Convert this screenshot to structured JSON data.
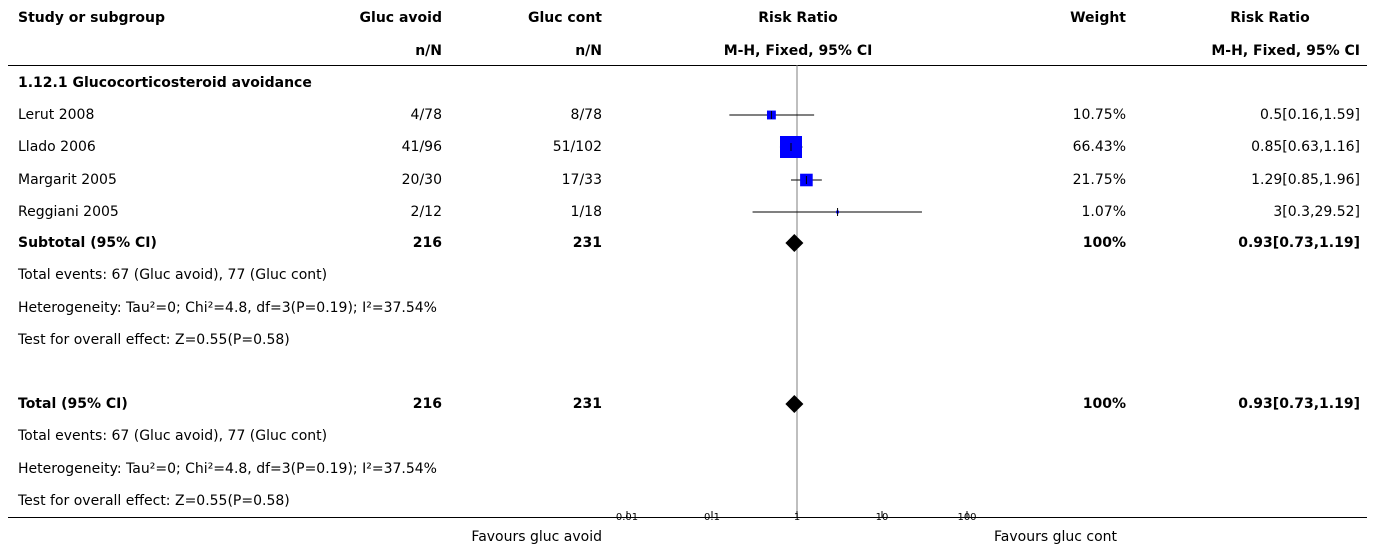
{
  "chart_data": {
    "type": "forest",
    "scale": "log",
    "xlim": [
      0.01,
      100
    ],
    "null_value": 1,
    "headers": {
      "study": "Study or subgroup",
      "group1": "Gluc avoid",
      "group2": "Gluc cont",
      "group1_sub": "n/N",
      "group2_sub": "n/N",
      "plot": "Risk Ratio",
      "plot_sub": "M-H, Fixed, 95% CI",
      "weight": "Weight",
      "effect": "Risk Ratio",
      "effect_sub": "M-H, Fixed, 95% CI"
    },
    "subgroup_title": "1.12.1 Glucocorticosteroid avoidance",
    "studies": [
      {
        "name": "Lerut 2008",
        "g1": "4/78",
        "g2": "8/78",
        "weight": "10.75%",
        "ci_text": "0.5[0.16,1.59]",
        "est": 0.5,
        "lo": 0.16,
        "hi": 1.59,
        "w": 10.75
      },
      {
        "name": "Llado 2006",
        "g1": "41/96",
        "g2": "51/102",
        "weight": "66.43%",
        "ci_text": "0.85[0.63,1.16]",
        "est": 0.85,
        "lo": 0.63,
        "hi": 1.16,
        "w": 66.43
      },
      {
        "name": "Margarit 2005",
        "g1": "20/30",
        "g2": "17/33",
        "weight": "21.75%",
        "ci_text": "1.29[0.85,1.96]",
        "est": 1.29,
        "lo": 0.85,
        "hi": 1.96,
        "w": 21.75
      },
      {
        "name": "Reggiani 2005",
        "g1": "2/12",
        "g2": "1/18",
        "weight": "1.07%",
        "ci_text": "3[0.3,29.52]",
        "est": 3,
        "lo": 0.3,
        "hi": 29.52,
        "w": 1.07
      }
    ],
    "subtotal": {
      "label": "Subtotal (95% CI)",
      "g1": "216",
      "g2": "231",
      "weight": "100%",
      "ci_text": "0.93[0.73,1.19]",
      "est": 0.93,
      "lo": 0.73,
      "hi": 1.19
    },
    "subtotal_notes": [
      "Total events: 67 (Gluc avoid), 77 (Gluc cont)",
      "Heterogeneity: Tau²=0; Chi²=4.8, df=3(P=0.19); I²=37.54%",
      "Test for overall effect: Z=0.55(P=0.58)"
    ],
    "total": {
      "label": "Total (95% CI)",
      "g1": "216",
      "g2": "231",
      "weight": "100%",
      "ci_text": "0.93[0.73,1.19]",
      "est": 0.93,
      "lo": 0.73,
      "hi": 1.19
    },
    "total_notes": [
      "Total events: 67 (Gluc avoid), 77 (Gluc cont)",
      "Heterogeneity: Tau²=0; Chi²=4.8, df=3(P=0.19); I²=37.54%",
      "Test for overall effect: Z=0.55(P=0.58)"
    ],
    "axis_ticks": [
      "0.01",
      "0.1",
      "1",
      "10",
      "100"
    ],
    "tick_values": [
      0.01,
      0.1,
      1,
      10,
      100
    ],
    "favours_left": "Favours gluc avoid",
    "favours_right": "Favours gluc cont",
    "colors": {
      "box": "#0000ff",
      "diamond": "#000000",
      "line": "#000000"
    }
  }
}
